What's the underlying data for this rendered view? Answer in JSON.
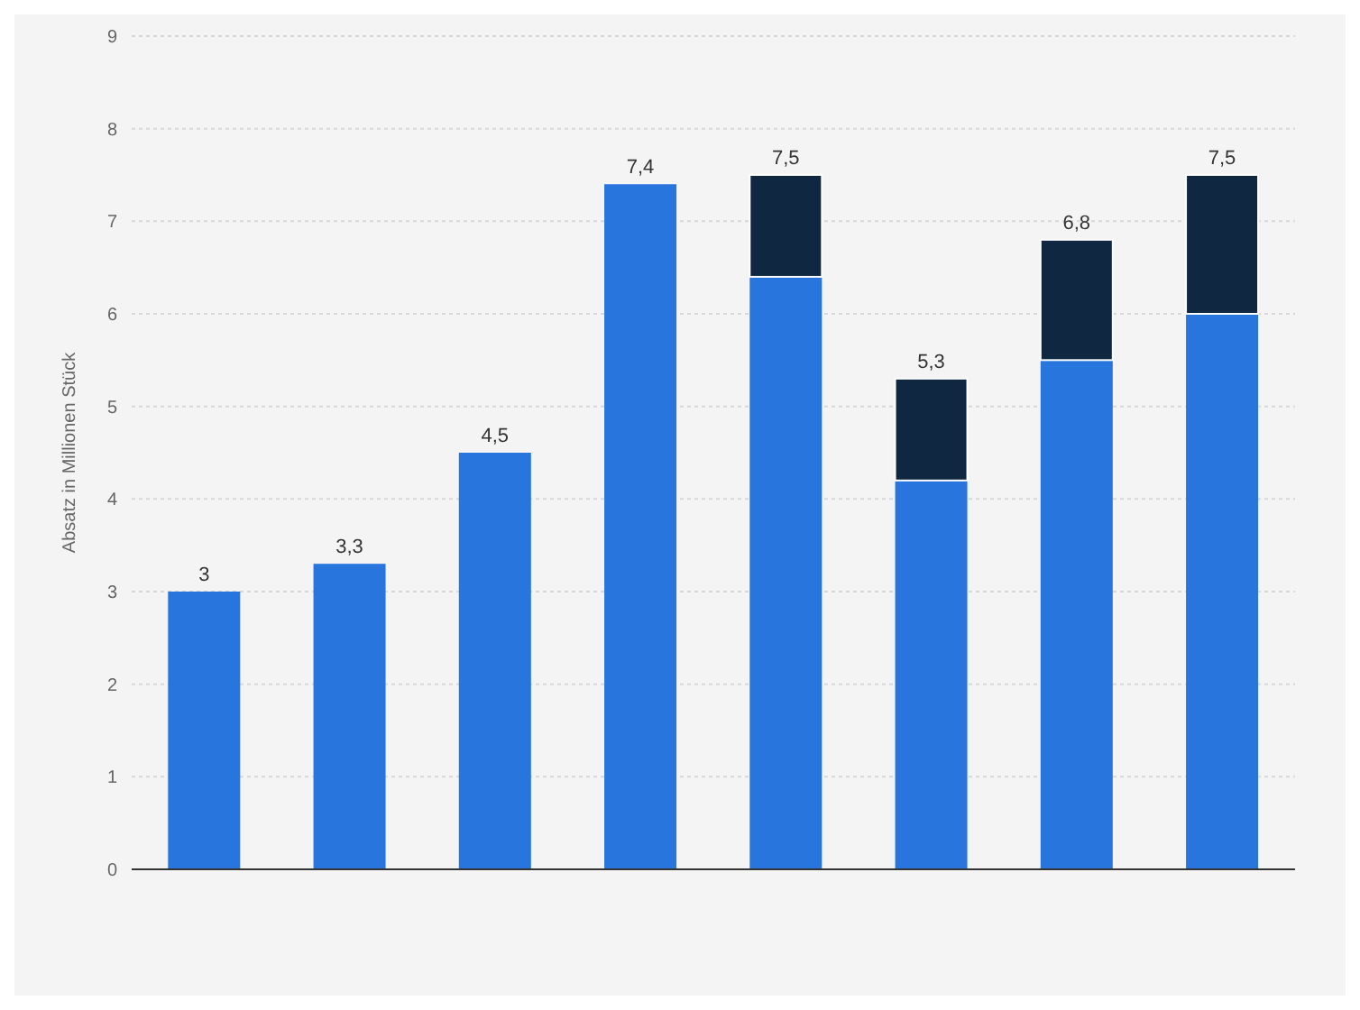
{
  "chart_data": {
    "type": "bar",
    "ylabel": "Absatz in Millionen Stück",
    "categories": [
      null,
      null,
      null,
      null,
      null,
      null,
      null,
      null
    ],
    "stacked": true,
    "series": [
      {
        "color": "#2876dd",
        "values": [
          3,
          3.3,
          4.5,
          7.4,
          6.4,
          4.2,
          5.5,
          6.0
        ]
      },
      {
        "color": "#0f2740",
        "values": [
          null,
          null,
          null,
          null,
          1.1,
          1.1,
          1.3,
          1.5
        ]
      }
    ],
    "totals": [
      "3",
      "3,3",
      "4,5",
      "7,4",
      "7,5",
      "5,3",
      "6,8",
      "7,5"
    ],
    "ylim": [
      0,
      9
    ],
    "yticks": [
      0,
      1,
      2,
      3,
      4,
      5,
      6,
      7,
      8,
      9
    ],
    "grid": "y",
    "legend": false
  }
}
